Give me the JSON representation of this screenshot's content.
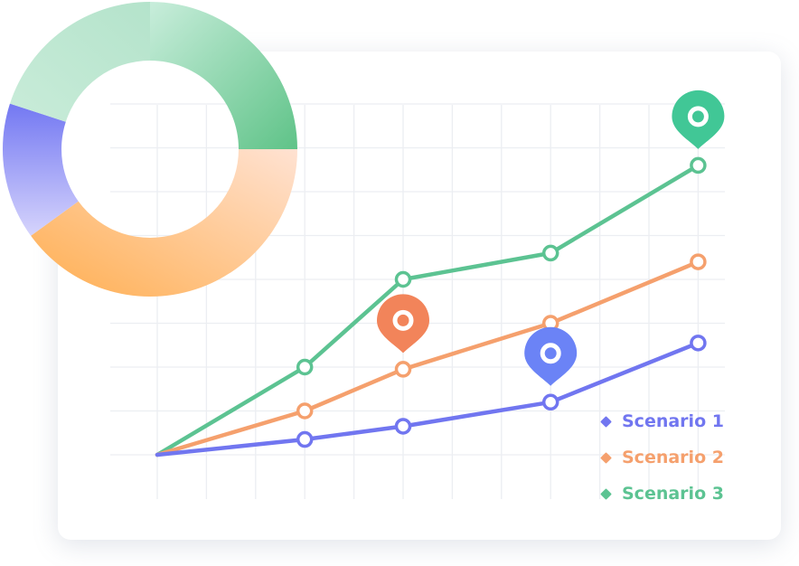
{
  "chart_data": [
    {
      "type": "line",
      "title": "",
      "xlabel": "",
      "ylabel": "",
      "x": [
        0,
        3,
        5,
        8,
        11
      ],
      "xlim": [
        -0.3,
        12.2
      ],
      "ylim": [
        0,
        8
      ],
      "grid": true,
      "legend_position": "bottom-right",
      "series": [
        {
          "name": "Scenario 1",
          "color": "#7176f0",
          "values": [
            0,
            0.35,
            0.65,
            1.2,
            2.55
          ]
        },
        {
          "name": "Scenario 2",
          "color": "#f5a06d",
          "values": [
            0,
            1.0,
            1.95,
            3.0,
            4.4
          ]
        },
        {
          "name": "Scenario 3",
          "color": "#5cc392",
          "values": [
            0,
            2.0,
            4.0,
            4.6,
            6.6
          ]
        }
      ],
      "markers": [
        {
          "series": "Scenario 3",
          "x": 11,
          "icon": "location-pin-icon",
          "color": "#41c796"
        },
        {
          "series": "Scenario 2",
          "x": 5,
          "icon": "location-pin-icon",
          "color": "#f2845a"
        },
        {
          "series": "Scenario 1",
          "x": 8,
          "icon": "location-pin-icon",
          "color": "#6b83f6"
        }
      ]
    },
    {
      "type": "pie",
      "style": "donut",
      "slices": [
        {
          "value": 25,
          "color_start": "#5fc388",
          "color_end": "#c3ebd6"
        },
        {
          "value": 40,
          "color_start": "#ffd6bf",
          "color_end": "#ffad4f"
        },
        {
          "value": 15,
          "color_start": "#d0cffc",
          "color_end": "#7577f3"
        },
        {
          "value": 20,
          "color_start": "#c3ebd6",
          "color_end": "#9fd9b8"
        }
      ]
    }
  ],
  "legend": {
    "items": [
      {
        "label": "Scenario 1",
        "color": "#7176f0"
      },
      {
        "label": "Scenario 2",
        "color": "#f5a06d"
      },
      {
        "label": "Scenario 3",
        "color": "#5cc392"
      }
    ]
  }
}
